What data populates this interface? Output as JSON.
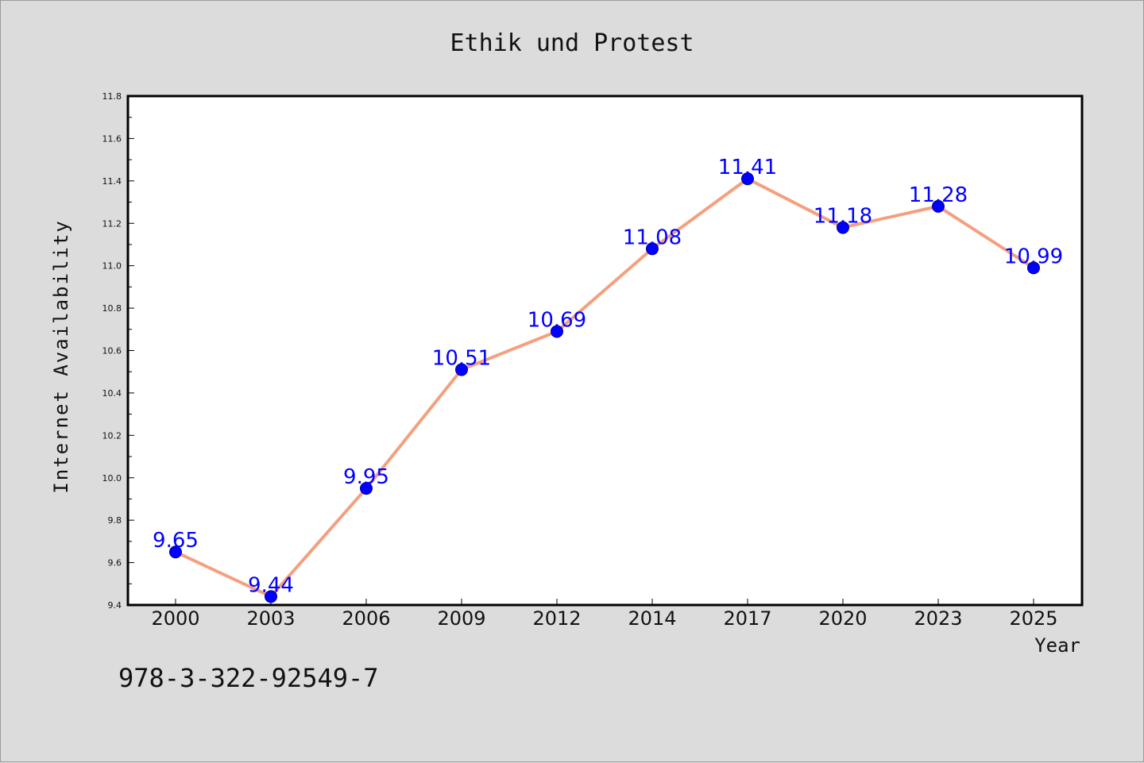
{
  "chart_data": {
    "type": "line",
    "title": "Ethik und Protest",
    "xlabel": "Year",
    "ylabel": "Internet Availability",
    "categories": [
      "2000",
      "2003",
      "2006",
      "2009",
      "2012",
      "2014",
      "2017",
      "2020",
      "2023",
      "2025"
    ],
    "series": [
      {
        "values": [
          9.65,
          9.44,
          9.95,
          10.51,
          10.69,
          11.08,
          11.41,
          11.18,
          11.28,
          10.99
        ]
      }
    ],
    "data_labels": [
      "9.65",
      "9.44",
      "9.95",
      "10.51",
      "10.69",
      "11.08",
      "11.41",
      "11.18",
      "11.28",
      "10.99"
    ],
    "ylim": [
      9.4,
      11.8
    ],
    "yticks": [
      "9.4",
      "9.6",
      "9.8",
      "10.0",
      "10.2",
      "10.4",
      "10.6",
      "10.8",
      "11.0",
      "11.2",
      "11.4",
      "11.6",
      "11.8"
    ],
    "grid": false,
    "legend": "none",
    "colors": {
      "line": "#f4a07e",
      "marker": "#0000ff",
      "marker_edge": "#00008b",
      "data_label": "#0000ff",
      "background": "#dcdcdc",
      "plot_background": "#ffffff"
    }
  },
  "footer": {
    "isbn": "978-3-322-92549-7"
  }
}
